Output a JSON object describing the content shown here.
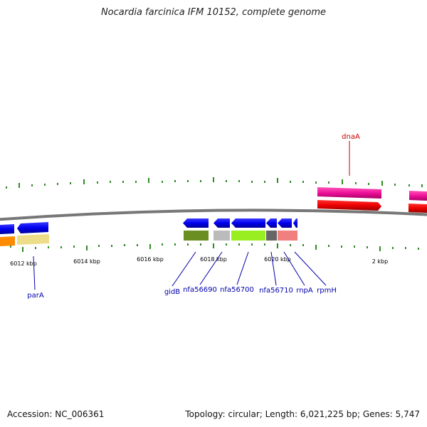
{
  "title": "Nocardia farcinica IFM 10152, complete genome",
  "footer": {
    "accession": "Accession: NC_006361",
    "summary": "Topology: circular; Length: 6,021,225 bp; Genes: 5,747"
  },
  "colors": {
    "backbone": "#777777",
    "tick": "#2e8b22",
    "forward_gene": "#0000ee",
    "label_blue": "#0000aa",
    "label_red": "#cc0000"
  },
  "scale_labels": [
    "6012 kbp",
    "6014 kbp",
    "6016 kbp",
    "6018 kbp",
    "6020 kbp",
    "2 kbp"
  ],
  "gene_labels": [
    "dnaA",
    "parA",
    "gidB",
    "nfa56690",
    "nfa56700",
    "nfa56710",
    "rnpA",
    "rpmH"
  ]
}
